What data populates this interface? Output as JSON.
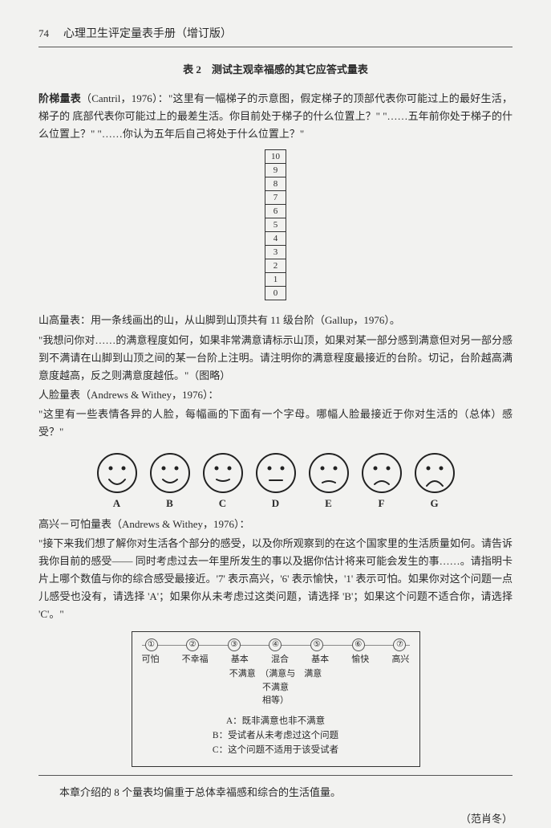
{
  "header": {
    "page_number": "74",
    "book_title": "心理卫生评定量表手册（增订版）"
  },
  "table_caption": "表 2　测试主观幸福感的其它应答式量表",
  "ladder_section": {
    "label": "阶梯量表",
    "citation": "（Cantril，1976）：",
    "text": "\"这里有一幅梯子的示意图，假定梯子的顶部代表你可能过上的最好生活，梯子的 底部代表你可能过上的最差生活。你目前处于梯子的什么位置上？\" \"……五年前你处于梯子的什么位置上？\" \"……你认为五年后自己将处于什么位置上？\"",
    "rungs": [
      "10",
      "9",
      "8",
      "7",
      "6",
      "5",
      "4",
      "3",
      "2",
      "1",
      "0"
    ]
  },
  "mountain_section": {
    "line1": "山高量表：用一条线画出的山，从山脚到山顶共有 11 级台阶（Gallup，1976）。",
    "line2": "\"我想问你对……的满意程度如何，如果非常满意请标示山顶，如果对某一部分感到满意但对另一部分感到不满请在山脚到山顶之间的某一台阶上注明。请注明你的满意程度最接近的台阶。切记，台阶越高满意度越高，反之则满意度越低。\"（图略）"
  },
  "faces_section": {
    "label": "人脸量表（Andrews & Withey，1976）：",
    "prompt": "\"这里有一些表情各异的人脸，每幅画的下面有一个字母。哪幅人脸最接近于你对生活的（总体）感受？\"",
    "faces": [
      {
        "letter": "A",
        "mouth": "smile-big"
      },
      {
        "letter": "B",
        "mouth": "smile"
      },
      {
        "letter": "C",
        "mouth": "smile-slight"
      },
      {
        "letter": "D",
        "mouth": "flat"
      },
      {
        "letter": "E",
        "mouth": "frown-slight"
      },
      {
        "letter": "F",
        "mouth": "frown"
      },
      {
        "letter": "G",
        "mouth": "frown-big"
      }
    ]
  },
  "terrible_section": {
    "label": "高兴－可怕量表（Andrews & Withey，1976）：",
    "text": "\"接下来我们想了解你对生活各个部分的感受，以及你所观察到的在这个国家里的生活质量如何。请告诉我你目前的感受—— 同时考虑过去一年里所发生的事以及据你估计将来可能会发生的事……。请指明卡片上哪个数值与你的综合感受最接近。'7' 表示高兴，'6' 表示愉快，'1' 表示可怕。如果你对这个问题一点儿感受也没有，请选择 'A'；如果你从未考虑过这类问题，请选择 'B'；如果这个问题不适合你，请选择 'C'。\"",
    "scale_numbers": [
      "①",
      "②",
      "③",
      "④",
      "⑤",
      "⑥",
      "⑦"
    ],
    "scale_words": [
      "可怕",
      "不幸福",
      "基本",
      "混合",
      "基本",
      "愉快",
      "高兴"
    ],
    "scale_sub1": "不满意　（满意与　满意",
    "scale_sub2": "不满意",
    "scale_sub3": "相等）",
    "optA": "A：既非满意也非不满意",
    "optB": "B：受试者从未考虑过这个问题",
    "optC": "C：这个问题不适用于该受试者"
  },
  "summary": "本章介绍的 8 个量表均偏重于总体幸福感和综合的生活值量。",
  "author": "（范肖冬）",
  "colors": {
    "text": "#2a2a2a",
    "border": "#333333",
    "bg": "#f2f2f0"
  }
}
